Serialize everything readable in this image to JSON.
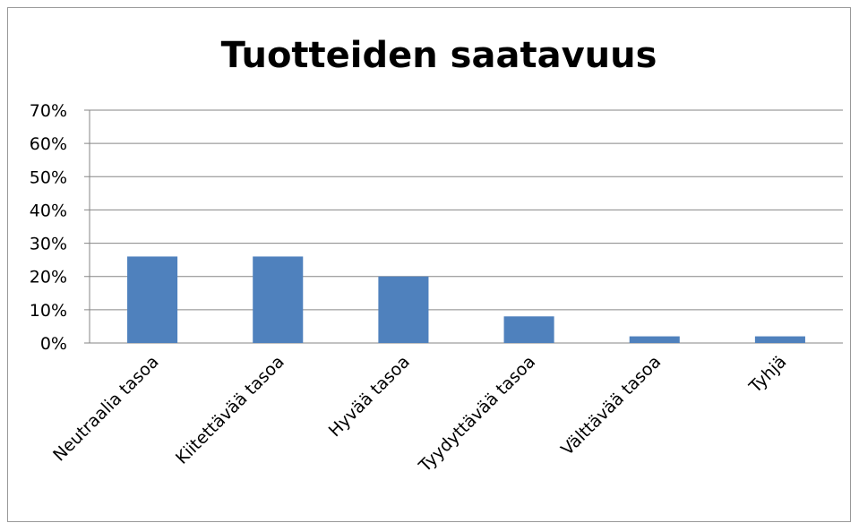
{
  "chart_data": {
    "type": "bar",
    "title": "Tuotteiden saatavuus",
    "categories": [
      "Neutraalia tasoa",
      "Kiitettävää tasoa",
      "Hyvää tasoa",
      "Tyydyttävää tasoa",
      "Välttävää tasoa",
      "Tyhjä"
    ],
    "values": [
      26,
      26,
      20,
      8,
      2,
      2
    ],
    "color": "#4f81bd",
    "ylim": [
      0,
      70
    ],
    "yticks": [
      {
        "value": 0,
        "label": "0%"
      },
      {
        "value": 10,
        "label": "10%"
      },
      {
        "value": 20,
        "label": "20%"
      },
      {
        "value": 30,
        "label": "30%"
      },
      {
        "value": 40,
        "label": "40%"
      },
      {
        "value": 50,
        "label": "50%"
      },
      {
        "value": 60,
        "label": "60%"
      },
      {
        "value": 70,
        "label": "70%"
      }
    ],
    "grid": true
  }
}
